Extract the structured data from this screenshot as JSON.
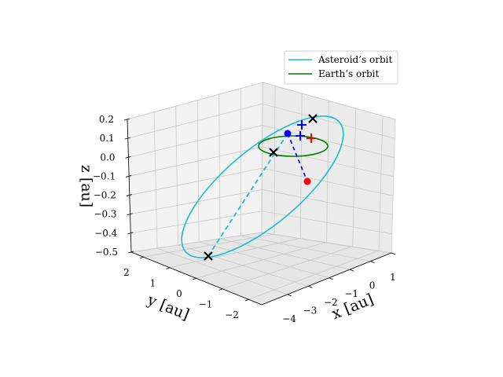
{
  "chart_data": {
    "type": "line",
    "projection": "3d",
    "title": "",
    "xlabel": "$x$ [au]",
    "ylabel": "$y$ [au]",
    "zlabel": "$z$ [au]",
    "xlabel_text": "x [au]",
    "ylabel_text": "y [au]",
    "zlabel_text": "z [au]",
    "xlim": [
      -4.5,
      1.3
    ],
    "ylim": [
      -2.5,
      2.5
    ],
    "zlim": [
      -0.5,
      0.2
    ],
    "x_ticks": [
      "−4",
      "−3",
      "−2",
      "−1",
      "0",
      "1"
    ],
    "y_ticks": [
      "2",
      "1",
      "0",
      "−1",
      "−2"
    ],
    "z_ticks": [
      "0.2",
      "0.1",
      "0.0",
      "−0.1",
      "−0.2",
      "−0.3",
      "−0.4",
      "−0.5"
    ],
    "grid": true,
    "legend_position": "upper right",
    "colors": {
      "asteroid": "#17becf",
      "earth": "#008000",
      "black_marker": "#000000",
      "blue_marker": "#0000ff",
      "red_marker": "#ff0000"
    },
    "series": [
      {
        "name": "Asteroid’s orbit",
        "style": "solid",
        "color": "#17becf"
      },
      {
        "name": "Earth’s orbit",
        "style": "solid",
        "color": "#008000"
      }
    ],
    "annotations": [
      {
        "kind": "dashed-line",
        "color": "#17becf",
        "description": "cyan dashed segment from lower node of asteroid orbit to upper node"
      },
      {
        "kind": "dashed-line",
        "color": "#0000ff",
        "description": "blue dashed segment from blue point to red point"
      },
      {
        "kind": "point",
        "marker": "o",
        "color": "#0000ff"
      },
      {
        "kind": "point",
        "marker": "o",
        "color": "#ff0000"
      },
      {
        "kind": "marker",
        "marker": "x",
        "color": "#000000",
        "count": 3
      },
      {
        "kind": "marker",
        "marker": "+",
        "color": "#0000ff",
        "count": 2
      },
      {
        "kind": "marker",
        "marker": "+",
        "color": "#ff0000",
        "count": 1
      }
    ]
  }
}
